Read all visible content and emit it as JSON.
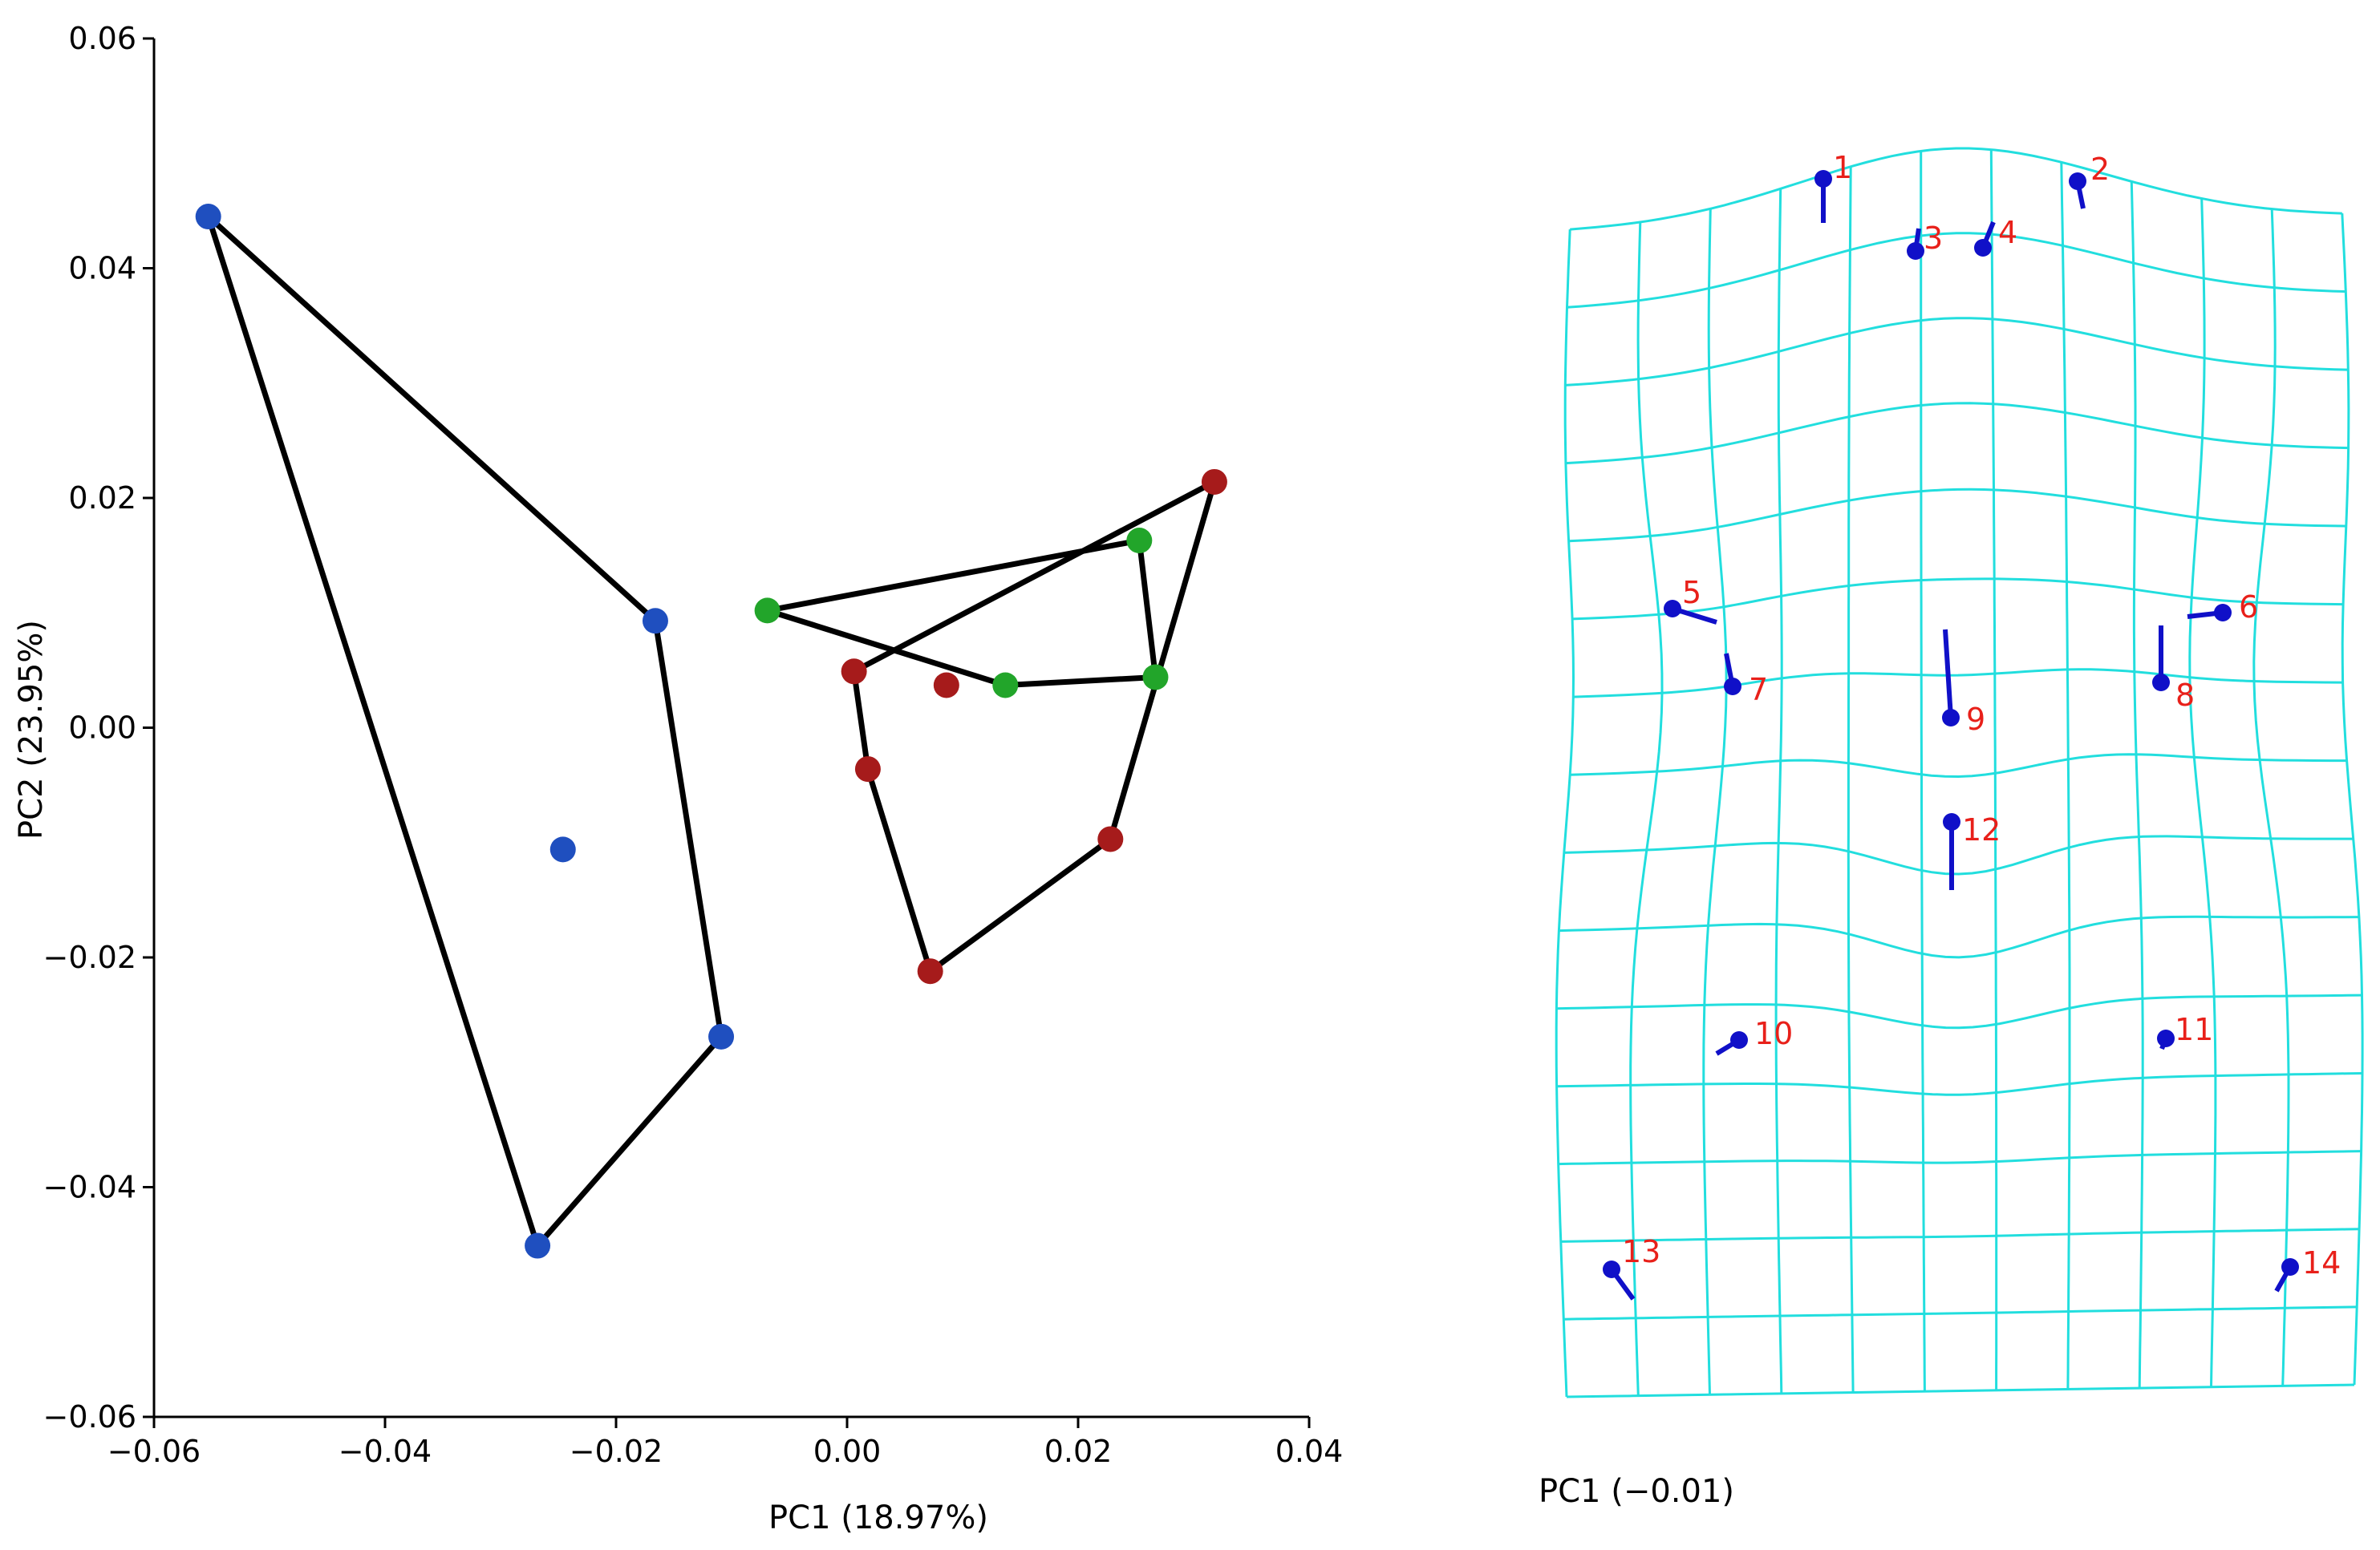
{
  "chart_data": [
    {
      "type": "scatter",
      "xlabel": "PC1 (18.97%)",
      "ylabel": "PC2 (23.95%)",
      "xlim": [
        -0.06,
        0.04
      ],
      "ylim": [
        -0.06,
        0.06
      ],
      "x_ticks": [
        -0.06,
        -0.04,
        -0.02,
        0.0,
        0.02,
        0.04
      ],
      "y_ticks": [
        -0.06,
        -0.04,
        -0.02,
        0.0,
        0.02,
        0.04,
        0.06
      ],
      "x_tick_labels": [
        "−0.06",
        "−0.04",
        "−0.02",
        "0.00",
        "0.02",
        "0.04"
      ],
      "y_tick_labels": [
        "−0.06",
        "−0.04",
        "−0.02",
        "0.00",
        "0.02",
        "0.04",
        "0.06"
      ],
      "grid": false,
      "series": [
        {
          "color": "#1f4fbf",
          "points": [
            [
              -0.0553,
              0.0445
            ],
            [
              -0.0166,
              0.0093
            ],
            [
              -0.0109,
              -0.0269
            ],
            [
              -0.0268,
              -0.0451
            ],
            [
              -0.0246,
              -0.0106
            ]
          ],
          "hull": [
            [
              -0.0553,
              0.0445
            ],
            [
              -0.0166,
              0.0093
            ],
            [
              -0.0109,
              -0.0269
            ],
            [
              -0.0268,
              -0.0451
            ]
          ]
        },
        {
          "color": "#22a52a",
          "points": [
            [
              -0.0069,
              0.0102
            ],
            [
              0.0253,
              0.0163
            ],
            [
              0.0267,
              0.0044
            ],
            [
              0.0137,
              0.0037
            ]
          ],
          "hull": [
            [
              -0.0069,
              0.0102
            ],
            [
              0.0253,
              0.0163
            ],
            [
              0.0267,
              0.0044
            ],
            [
              0.0137,
              0.0037
            ]
          ]
        },
        {
          "color": "#a61b1b",
          "points": [
            [
              0.0318,
              0.0214
            ],
            [
              0.0228,
              -0.0097
            ],
            [
              0.0072,
              -0.0212
            ],
            [
              0.0018,
              -0.0036
            ],
            [
              0.0006,
              0.0049
            ],
            [
              0.0086,
              0.0037
            ]
          ],
          "hull": [
            [
              0.0006,
              0.0049
            ],
            [
              0.0318,
              0.0214
            ],
            [
              0.0228,
              -0.0097
            ],
            [
              0.0072,
              -0.0212
            ],
            [
              0.0018,
              -0.0036
            ]
          ]
        }
      ]
    },
    {
      "type": "diagram",
      "xlabel": "PC1 (−0.01)",
      "grid_color": "#22dede",
      "landmark_color": "#1010c8",
      "label_color": "#e8201a",
      "landmarks": [
        {
          "label": "1"
        },
        {
          "label": "2"
        },
        {
          "label": "3"
        },
        {
          "label": "4"
        },
        {
          "label": "5"
        },
        {
          "label": "6"
        },
        {
          "label": "7"
        },
        {
          "label": "8"
        },
        {
          "label": "9"
        },
        {
          "label": "10"
        },
        {
          "label": "11"
        },
        {
          "label": "12"
        },
        {
          "label": "13"
        },
        {
          "label": "14"
        }
      ]
    }
  ]
}
